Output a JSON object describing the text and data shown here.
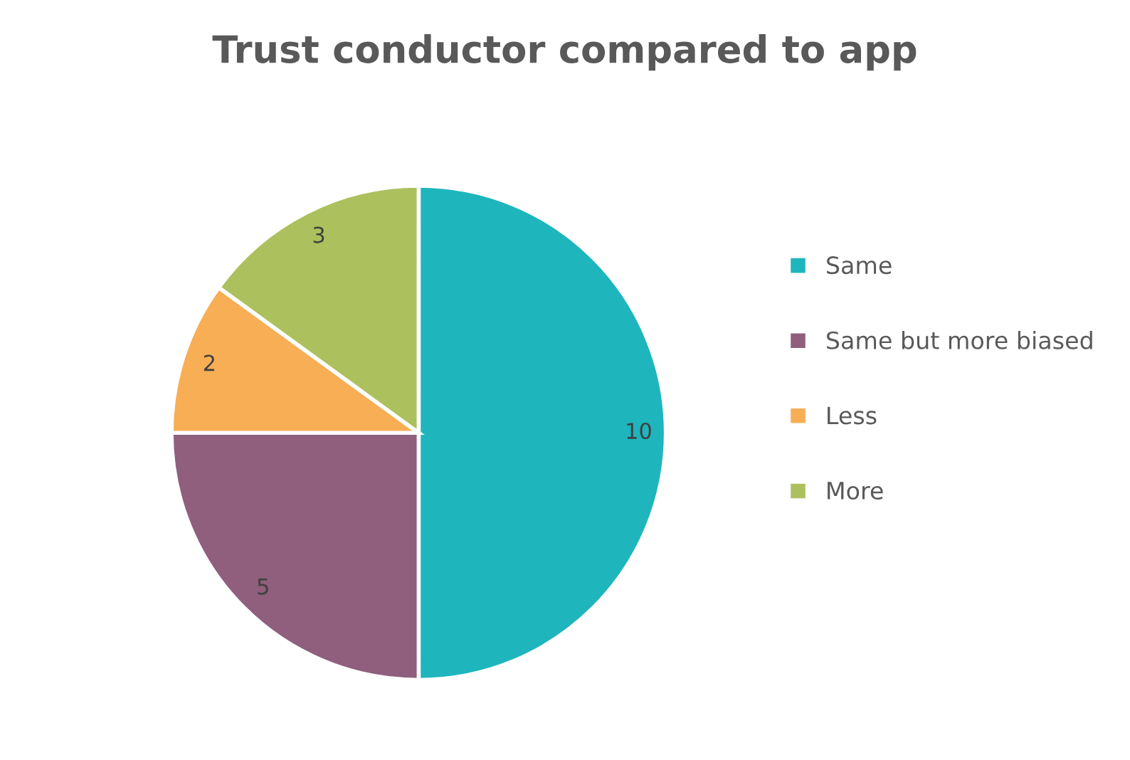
{
  "chart_data": {
    "type": "pie",
    "title": "Trust conductor compared to app",
    "categories": [
      "Same",
      "Same but more biased",
      "Less",
      "More"
    ],
    "values": [
      10,
      5,
      2,
      3
    ],
    "colors": [
      "#1fb5bd",
      "#8f5f7d",
      "#f7ae55",
      "#adc05e"
    ],
    "data_labels": true,
    "legend": "right"
  }
}
